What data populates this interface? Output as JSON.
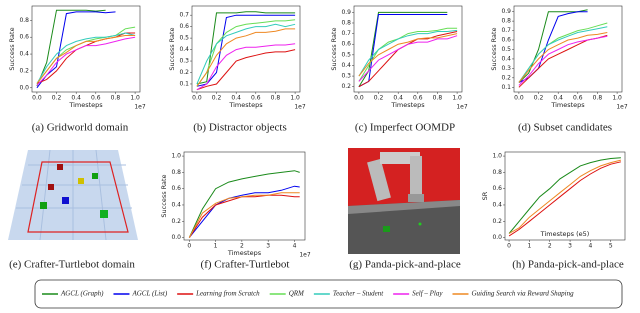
{
  "chart_data": [
    {
      "type": "line",
      "caption": "(a) Gridworld domain",
      "xlabel": "Timesteps",
      "ylabel": "Success Rate",
      "offset": "1e7",
      "x": [
        0,
        0.1,
        0.2,
        0.3,
        0.4,
        0.5,
        0.6,
        0.7,
        0.8,
        0.9,
        1.0
      ],
      "xlim": [
        -0.05,
        1.05
      ],
      "ylim": [
        -0.05,
        0.97
      ],
      "xticks": [
        {
          "value": 0,
          "label": "0.0"
        },
        0.2,
        0.4,
        0.6,
        0.8,
        {
          "value": 1,
          "label": "1.0"
        }
      ],
      "yticks": [
        {
          "value": 0,
          "label": "0.0"
        },
        0.2,
        0.4,
        0.6,
        0.8
      ],
      "series": [
        {
          "name": "AGCL (Graph)",
          "color": "#1a8a1a",
          "values": [
            0.02,
            0.3,
            0.92,
            0.92,
            0.92,
            0.92,
            0.91,
            0.92,
            null,
            null,
            null
          ]
        },
        {
          "name": "AGCL (List)",
          "color": "#0000ee",
          "values": [
            0,
            0.15,
            0.25,
            0.88,
            0.9,
            0.9,
            0.9,
            0.89,
            0.9,
            null,
            null
          ]
        },
        {
          "name": "Learning from Scratch",
          "color": "#dd1111",
          "values": [
            0.05,
            0.1,
            0.2,
            0.35,
            0.45,
            0.5,
            0.55,
            0.58,
            0.6,
            0.65,
            0.65
          ]
        },
        {
          "name": "QRM",
          "color": "#66dd55",
          "values": [
            0.05,
            0.2,
            0.35,
            0.45,
            0.5,
            0.55,
            0.58,
            0.6,
            0.62,
            0.7,
            0.72
          ]
        },
        {
          "name": "Teacher – Student",
          "color": "#33ccbb",
          "values": [
            0.05,
            0.25,
            0.4,
            0.5,
            0.55,
            0.58,
            0.6,
            0.6,
            0.62,
            0.65,
            0.62
          ]
        },
        {
          "name": "Self – Play",
          "color": "#ee22ee",
          "values": [
            0.03,
            0.15,
            0.3,
            0.4,
            0.45,
            0.5,
            0.5,
            0.52,
            0.55,
            0.58,
            0.6
          ]
        },
        {
          "name": "Guiding Search via Reward Shaping",
          "color": "#ee8822",
          "values": [
            0.05,
            0.2,
            0.35,
            0.42,
            0.5,
            0.55,
            0.55,
            0.58,
            0.6,
            0.62,
            0.62
          ]
        }
      ]
    },
    {
      "type": "line",
      "caption": "(b) Distractor objects",
      "xlabel": "Timesteps",
      "ylabel": "Success Rate",
      "offset": "1e7",
      "x": [
        0,
        0.1,
        0.2,
        0.3,
        0.4,
        0.5,
        0.6,
        0.7,
        0.8,
        0.9,
        1.0
      ],
      "xlim": [
        -0.05,
        1.05
      ],
      "ylim": [
        0.03,
        0.78
      ],
      "xticks": [
        {
          "value": 0,
          "label": "0.0"
        },
        0.2,
        0.4,
        0.6,
        0.8,
        {
          "value": 1,
          "label": "1.0"
        }
      ],
      "yticks": [
        0.1,
        0.2,
        0.3,
        0.4,
        0.5,
        0.6,
        0.7
      ],
      "series": [
        {
          "name": "AGCL (Graph)",
          "color": "#1a8a1a",
          "values": [
            0.1,
            0.12,
            0.72,
            0.72,
            0.72,
            0.73,
            0.73,
            0.72,
            0.72,
            0.72,
            0.72
          ]
        },
        {
          "name": "AGCL (List)",
          "color": "#0000ee",
          "values": [
            0.08,
            0.1,
            0.2,
            0.68,
            0.7,
            0.7,
            0.7,
            0.7,
            0.7,
            0.7,
            0.7
          ]
        },
        {
          "name": "Learning from Scratch",
          "color": "#dd1111",
          "values": [
            0.05,
            0.08,
            0.1,
            0.2,
            0.3,
            0.33,
            0.35,
            0.37,
            0.38,
            0.38,
            0.4
          ]
        },
        {
          "name": "QRM",
          "color": "#66dd55",
          "values": [
            0.08,
            0.2,
            0.45,
            0.55,
            0.6,
            0.62,
            0.63,
            0.64,
            0.65,
            0.65,
            0.66
          ]
        },
        {
          "name": "Teacher – Student",
          "color": "#33ccbb",
          "values": [
            0.1,
            0.3,
            0.45,
            0.52,
            0.55,
            0.58,
            0.6,
            0.6,
            0.62,
            0.6,
            0.62
          ]
        },
        {
          "name": "Self – Play",
          "color": "#ee22ee",
          "values": [
            0.05,
            0.1,
            0.25,
            0.35,
            0.4,
            0.42,
            0.42,
            0.43,
            0.44,
            0.44,
            0.45
          ]
        },
        {
          "name": "Guiding Search via Reward Shaping",
          "color": "#ee8822",
          "values": [
            0.08,
            0.2,
            0.35,
            0.45,
            0.5,
            0.52,
            0.55,
            0.55,
            0.56,
            0.58,
            0.58
          ]
        }
      ]
    },
    {
      "type": "line",
      "caption": "(c) Imperfect OOMDP",
      "xlabel": "Timesteps",
      "ylabel": "Success Rate",
      "offset": "1e7",
      "x": [
        0,
        0.1,
        0.2,
        0.3,
        0.4,
        0.5,
        0.6,
        0.7,
        0.8,
        0.9,
        1.0
      ],
      "xlim": [
        -0.05,
        1.05
      ],
      "ylim": [
        0.15,
        0.96
      ],
      "xticks": [
        {
          "value": 0,
          "label": "0.0"
        },
        0.2,
        0.4,
        0.6,
        0.8,
        {
          "value": 1,
          "label": "1.0"
        }
      ],
      "yticks": [
        0.2,
        0.3,
        0.4,
        0.5,
        0.6,
        0.7,
        0.8,
        0.9
      ],
      "series": [
        {
          "name": "AGCL (Graph)",
          "color": "#1a8a1a",
          "values": [
            0.2,
            0.35,
            0.9,
            0.9,
            0.9,
            0.9,
            0.9,
            0.9,
            0.9,
            0.9,
            null
          ]
        },
        {
          "name": "AGCL (List)",
          "color": "#0000ee",
          "values": [
            0.2,
            0.25,
            0.88,
            0.88,
            0.88,
            0.88,
            0.88,
            0.88,
            0.88,
            0.88,
            null
          ]
        },
        {
          "name": "Learning from Scratch",
          "color": "#dd1111",
          "values": [
            0.2,
            0.25,
            0.35,
            0.45,
            0.55,
            0.6,
            0.65,
            0.65,
            0.68,
            0.7,
            0.72
          ]
        },
        {
          "name": "QRM",
          "color": "#66dd55",
          "values": [
            0.25,
            0.4,
            0.55,
            0.62,
            0.65,
            0.7,
            0.72,
            0.72,
            0.73,
            0.75,
            0.75
          ]
        },
        {
          "name": "Teacher – Student",
          "color": "#33ccbb",
          "values": [
            0.3,
            0.45,
            0.55,
            0.6,
            0.65,
            0.68,
            0.7,
            0.7,
            0.72,
            0.72,
            0.73
          ]
        },
        {
          "name": "Self – Play",
          "color": "#ee22ee",
          "values": [
            0.25,
            0.35,
            0.45,
            0.5,
            0.55,
            0.6,
            0.62,
            0.62,
            0.65,
            0.65,
            0.68
          ]
        },
        {
          "name": "Guiding Search via Reward Shaping",
          "color": "#ee8822",
          "values": [
            0.3,
            0.42,
            0.5,
            0.55,
            0.6,
            0.62,
            0.65,
            0.66,
            0.66,
            0.68,
            0.7
          ]
        }
      ]
    },
    {
      "type": "line",
      "caption": "(d) Subset candidates",
      "xlabel": "Timesteps",
      "ylabel": "Success Rate",
      "offset": "1e7",
      "x": [
        0,
        0.1,
        0.2,
        0.3,
        0.4,
        0.5,
        0.6,
        0.7,
        0.8,
        0.9,
        1.0
      ],
      "xlim": [
        -0.05,
        1.05
      ],
      "ylim": [
        0.05,
        0.96
      ],
      "xticks": [
        {
          "value": 0,
          "label": "0.0"
        },
        0.2,
        0.4,
        0.6,
        0.8,
        {
          "value": 1,
          "label": "1.0"
        }
      ],
      "yticks": [
        0.1,
        0.2,
        0.3,
        0.4,
        0.5,
        0.6,
        0.7,
        0.8,
        0.9
      ],
      "series": [
        {
          "name": "AGCL (Graph)",
          "color": "#1a8a1a",
          "values": [
            0.15,
            0.25,
            0.5,
            0.9,
            0.9,
            0.9,
            0.9,
            0.92,
            null,
            null,
            null
          ]
        },
        {
          "name": "AGCL (List)",
          "color": "#0000ee",
          "values": [
            0.15,
            0.2,
            0.3,
            0.6,
            0.85,
            0.88,
            0.9,
            0.9,
            null,
            null,
            null
          ]
        },
        {
          "name": "Learning from Scratch",
          "color": "#dd1111",
          "values": [
            0.1,
            0.2,
            0.3,
            0.4,
            0.45,
            0.5,
            0.55,
            0.6,
            0.62,
            0.65,
            null
          ]
        },
        {
          "name": "QRM",
          "color": "#66dd55",
          "values": [
            0.15,
            0.3,
            0.45,
            0.55,
            0.62,
            0.66,
            0.7,
            0.72,
            0.75,
            0.78,
            null
          ]
        },
        {
          "name": "Teacher – Student",
          "color": "#33ccbb",
          "values": [
            0.15,
            0.3,
            0.45,
            0.55,
            0.6,
            0.64,
            0.68,
            0.7,
            0.72,
            0.74,
            null
          ]
        },
        {
          "name": "Self – Play",
          "color": "#ee22ee",
          "values": [
            0.12,
            0.22,
            0.35,
            0.45,
            0.5,
            0.55,
            0.58,
            0.6,
            0.62,
            0.64,
            null
          ]
        },
        {
          "name": "Guiding Search via Reward Shaping",
          "color": "#ee8822",
          "values": [
            0.15,
            0.28,
            0.4,
            0.5,
            0.55,
            0.6,
            0.62,
            0.65,
            0.66,
            0.68,
            null
          ]
        }
      ]
    },
    {
      "type": "line",
      "caption": "(f) Crafter-Turtlebot",
      "xlabel": "Timesteps",
      "ylabel": "Success Rate",
      "offset": "1e7",
      "x": [
        0,
        0.5,
        1,
        1.5,
        2,
        2.5,
        3,
        3.5,
        4,
        4.2
      ],
      "xlim": [
        -0.2,
        4.4
      ],
      "ylim": [
        -0.03,
        1.05
      ],
      "xticks": [
        0,
        1,
        2,
        3,
        4
      ],
      "yticks": [
        {
          "value": 0,
          "label": "0.0"
        },
        0.2,
        0.4,
        0.6,
        0.8,
        {
          "value": 1,
          "label": "1.0"
        }
      ],
      "series": [
        {
          "name": "AGCL (Graph)",
          "color": "#1a8a1a",
          "values": [
            0,
            0.35,
            0.6,
            0.68,
            0.72,
            0.75,
            0.78,
            0.8,
            0.82,
            0.8
          ]
        },
        {
          "name": "AGCL (List)",
          "color": "#0000ee",
          "values": [
            0,
            0.2,
            0.4,
            0.48,
            0.52,
            0.55,
            0.55,
            0.58,
            0.63,
            0.62
          ]
        },
        {
          "name": "Learning from Scratch",
          "color": "#dd1111",
          "values": [
            0,
            0.25,
            0.4,
            0.45,
            0.5,
            0.5,
            0.52,
            0.52,
            0.5,
            0.5
          ]
        },
        {
          "name": "Guiding Search via Reward Shaping",
          "color": "#ee8822",
          "values": [
            0,
            0.3,
            0.42,
            0.48,
            0.5,
            0.52,
            0.52,
            0.55,
            0.55,
            0.55
          ]
        }
      ]
    },
    {
      "type": "line",
      "caption": "(h) Panda-pick-and-place",
      "xlabel": "Timesteps (e5)",
      "ylabel": "SR",
      "x": [
        0,
        0.5,
        1,
        1.5,
        2,
        2.5,
        3,
        3.5,
        4,
        4.5,
        5,
        5.5
      ],
      "xlim": [
        -0.2,
        5.7
      ],
      "ylim": [
        -0.03,
        1.05
      ],
      "xticks": [
        0,
        1,
        2,
        3,
        4,
        5
      ],
      "yticks": [
        {
          "value": 0,
          "label": "0.0"
        },
        0.2,
        0.4,
        0.6,
        0.8,
        {
          "value": 1,
          "label": "1.0"
        }
      ],
      "series": [
        {
          "name": "AGCL (Graph)",
          "color": "#1a8a1a",
          "values": [
            0.05,
            0.2,
            0.35,
            0.5,
            0.6,
            0.72,
            0.8,
            0.88,
            0.92,
            0.95,
            0.97,
            0.98
          ]
        },
        {
          "name": "Guiding Search via Reward Shaping",
          "color": "#ee8822",
          "values": [
            0.05,
            0.12,
            0.25,
            0.35,
            0.45,
            0.55,
            0.65,
            0.75,
            0.82,
            0.88,
            0.92,
            0.95
          ]
        },
        {
          "name": "Learning from Scratch",
          "color": "#dd1111",
          "values": [
            0.02,
            0.1,
            0.2,
            0.3,
            0.4,
            0.5,
            0.6,
            0.7,
            0.78,
            0.85,
            0.9,
            0.93
          ]
        }
      ]
    }
  ],
  "images": [
    {
      "caption": "(e) Crafter-Turtlebot domain"
    },
    {
      "caption": "(g) Panda-pick-and-place"
    }
  ]
}
